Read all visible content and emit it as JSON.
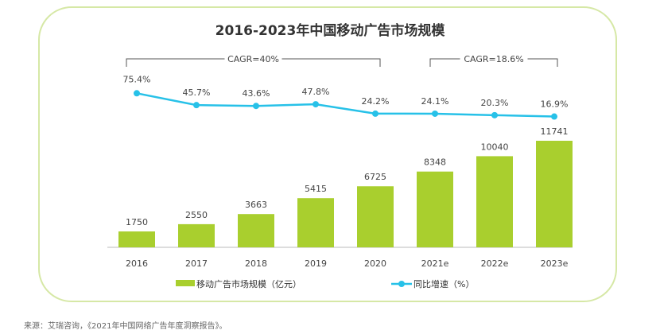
{
  "chart_data": {
    "type": "bar+line",
    "title": "2016-2023年中国移动广告市场规模",
    "categories": [
      "2016",
      "2017",
      "2018",
      "2019",
      "2020",
      "2021e",
      "2022e",
      "2023e"
    ],
    "series": [
      {
        "name": "移动广告市场规模（亿元）",
        "type": "bar",
        "color": "#a9cf2e",
        "values": [
          1750,
          2550,
          3663,
          5415,
          6725,
          8348,
          10040,
          11741
        ]
      },
      {
        "name": "同比增速（%）",
        "type": "line",
        "color": "#27c1e8",
        "values": [
          75.4,
          45.7,
          43.6,
          47.8,
          24.2,
          24.1,
          20.3,
          16.9
        ],
        "labels": [
          "75.4%",
          "45.7%",
          "43.6%",
          "47.8%",
          "24.2%",
          "24.1%",
          "20.3%",
          "16.9%"
        ]
      }
    ],
    "annotations": [
      {
        "text": "CAGR=40%",
        "from": "2016",
        "to": "2020"
      },
      {
        "text": "CAGR=18.6%",
        "from": "2021e",
        "to": "2023e"
      }
    ],
    "legend": "bottom",
    "grid": false
  },
  "source": "来源：艾瑞咨询，《2021年中国网络广告年度洞察报告》。"
}
